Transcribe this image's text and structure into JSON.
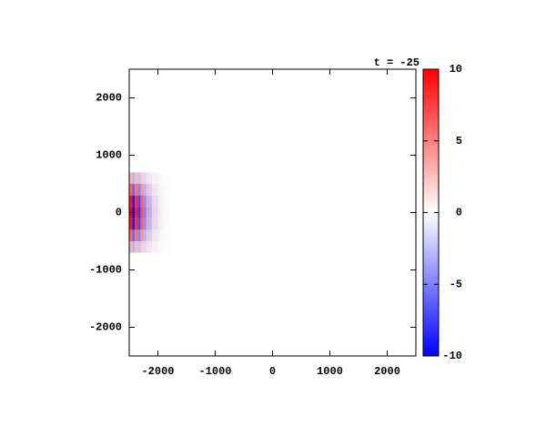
{
  "chart_data": {
    "type": "heatmap",
    "title": "t = -25",
    "x": [
      -2475,
      -2425,
      -2375,
      -2325,
      -2275,
      -2225,
      -2175,
      -2125,
      -2075,
      -2025,
      -1975,
      -1925,
      -1875,
      -1825
    ],
    "y": [
      -600,
      -400,
      -200,
      0,
      200,
      400,
      600
    ],
    "values": [
      [
        3,
        -3,
        2.7,
        -2.4,
        2.1,
        -1.5,
        1.2,
        -0.9,
        0.6,
        -0.5,
        0.3,
        -0.2,
        0.1,
        -0.1
      ],
      [
        6,
        -6,
        5.4,
        -4.8,
        4.2,
        -3,
        2.4,
        -1.8,
        1.2,
        -0.9,
        0.6,
        -0.3,
        0.2,
        -0.1
      ],
      [
        9,
        -9,
        8.1,
        -7.2,
        6.3,
        -4.5,
        3.6,
        -2.7,
        1.8,
        -1.4,
        0.9,
        -0.5,
        0.3,
        -0.2
      ],
      [
        10,
        -10,
        9,
        -8,
        7,
        -5,
        4,
        -3,
        2,
        -1.5,
        1,
        -0.5,
        0.3,
        -0.2
      ],
      [
        9,
        -9,
        8.1,
        -7.2,
        6.3,
        -4.5,
        3.6,
        -2.7,
        1.8,
        -1.4,
        0.9,
        -0.5,
        0.3,
        -0.2
      ],
      [
        6,
        -6,
        5.4,
        -4.8,
        4.2,
        -3,
        2.4,
        -1.8,
        1.2,
        -0.9,
        0.6,
        -0.3,
        0.2,
        -0.1
      ],
      [
        3,
        -3,
        2.7,
        -2.4,
        2.1,
        -1.5,
        1.2,
        -0.9,
        0.6,
        -0.5,
        0.3,
        -0.2,
        0.1,
        -0.1
      ]
    ],
    "xlim": [
      -2500,
      2500
    ],
    "ylim": [
      -2500,
      2500
    ],
    "xticks": [
      -2000,
      -1000,
      0,
      1000,
      2000
    ],
    "yticks": [
      -2000,
      -1000,
      0,
      1000,
      2000
    ],
    "colorbar": {
      "lim": [
        -10,
        10
      ],
      "ticks": [
        -10,
        -5,
        0,
        5,
        10
      ],
      "colors": [
        "#0000ff",
        "#ffffff",
        "#ff0000"
      ]
    }
  }
}
